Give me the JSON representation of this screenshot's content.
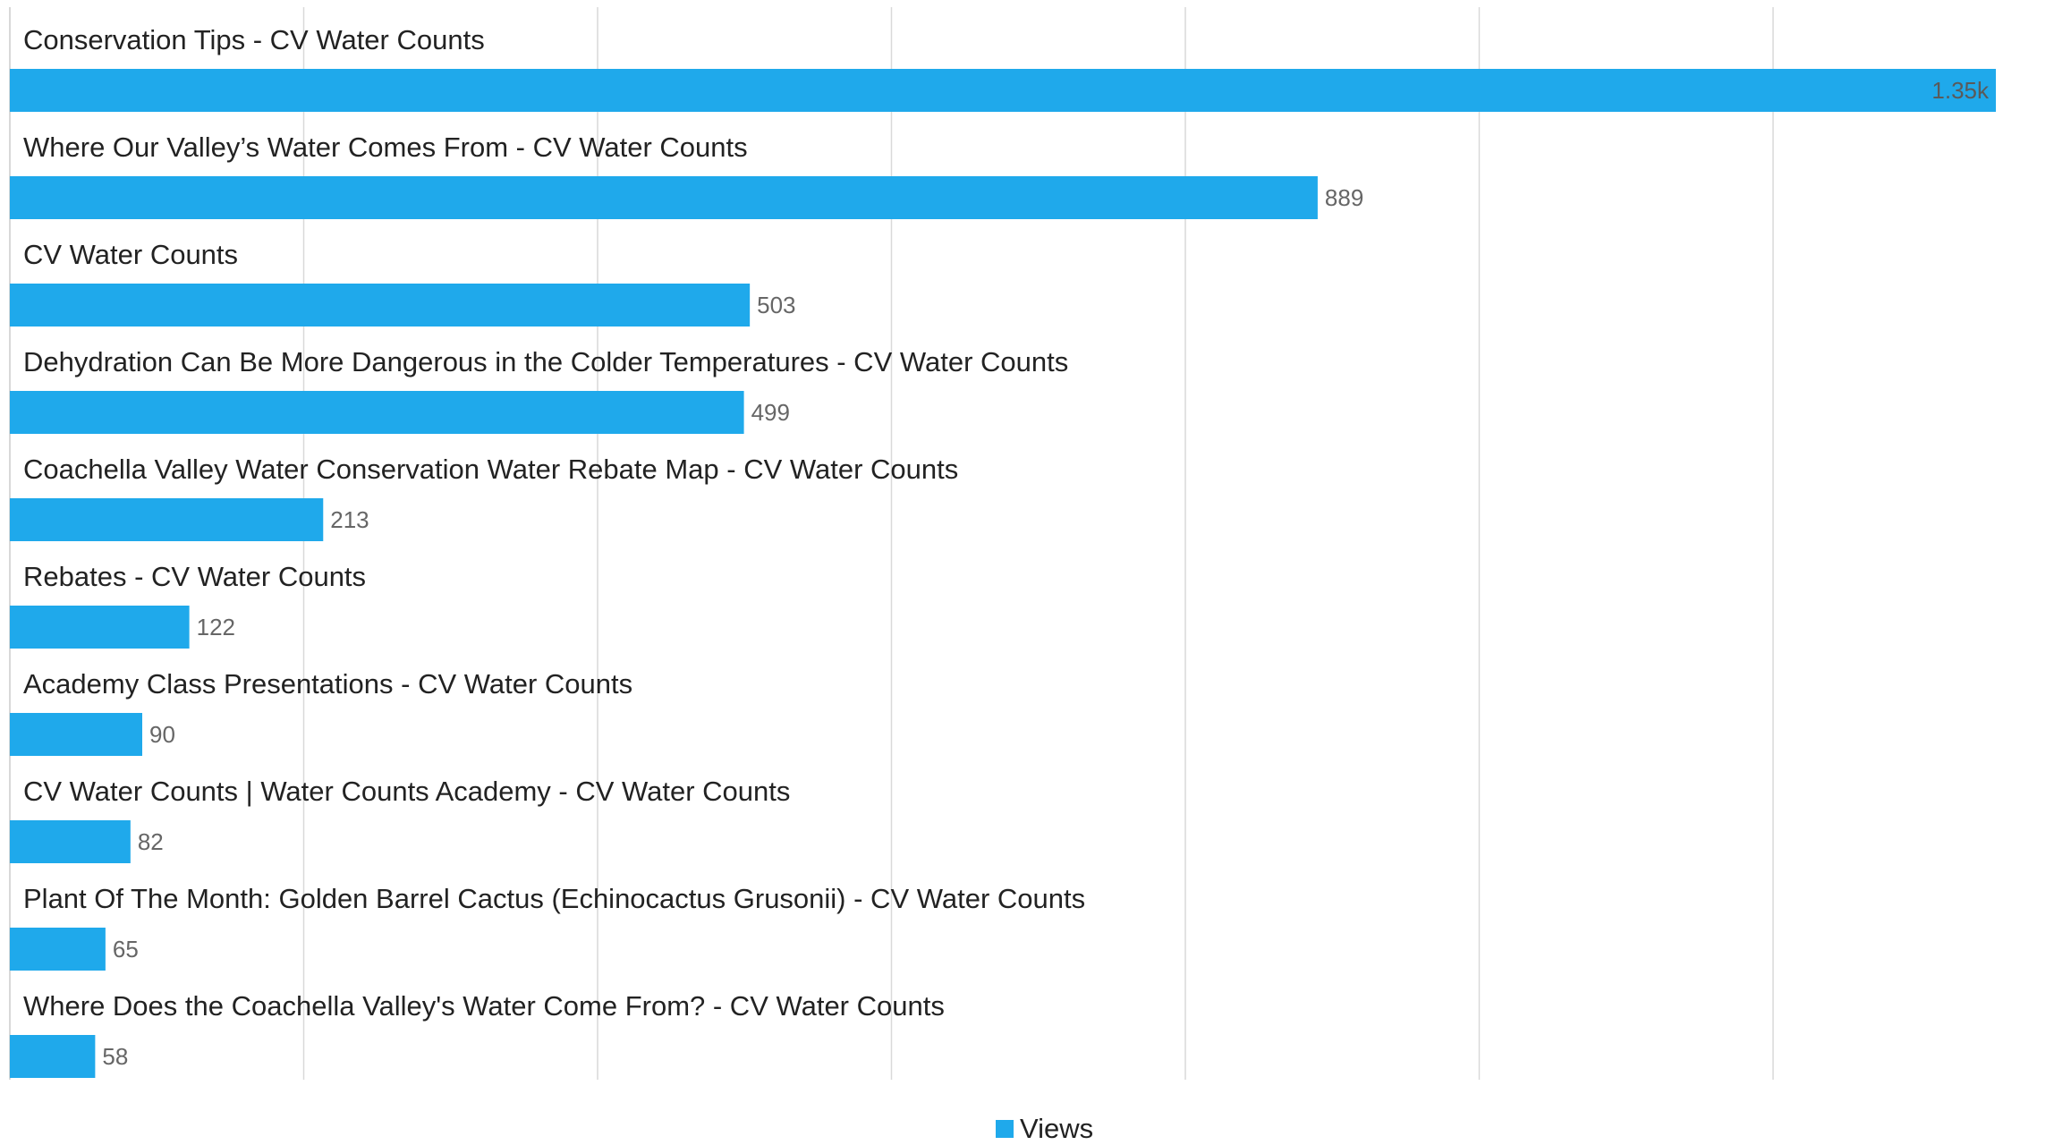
{
  "chart_data": {
    "type": "bar",
    "orientation": "horizontal",
    "categories": [
      "Conservation Tips - CV Water Counts",
      "Where Our Valley’s Water Comes From - CV Water Counts",
      "CV Water Counts",
      "Dehydration Can Be More Dangerous in the Colder Temperatures - CV Water Counts",
      "Coachella Valley Water Conservation Water Rebate Map - CV Water Counts",
      "Rebates - CV Water Counts",
      "Academy Class Presentations - CV Water Counts",
      "CV Water Counts | Water Counts Academy - CV Water Counts",
      "Plant Of The Month: Golden Barrel Cactus (Echinocactus Grusonii) - CV Water Counts",
      "Where Does the Coachella Valley's Water Come From? - CV Water Counts"
    ],
    "series": [
      {
        "name": "Views",
        "values": [
          1350,
          889,
          503,
          499,
          213,
          122,
          90,
          82,
          65,
          58
        ],
        "data_labels": [
          "1.35k",
          "889",
          "503",
          "499",
          "213",
          "122",
          "90",
          "82",
          "65",
          "58"
        ]
      }
    ],
    "xlim": [
      0,
      1400
    ],
    "grid": true,
    "legend_position": "bottom-center",
    "bar_color": "#1fa9eb",
    "grid_color": "#d9d9d9",
    "axis_color": "#cccccc"
  }
}
